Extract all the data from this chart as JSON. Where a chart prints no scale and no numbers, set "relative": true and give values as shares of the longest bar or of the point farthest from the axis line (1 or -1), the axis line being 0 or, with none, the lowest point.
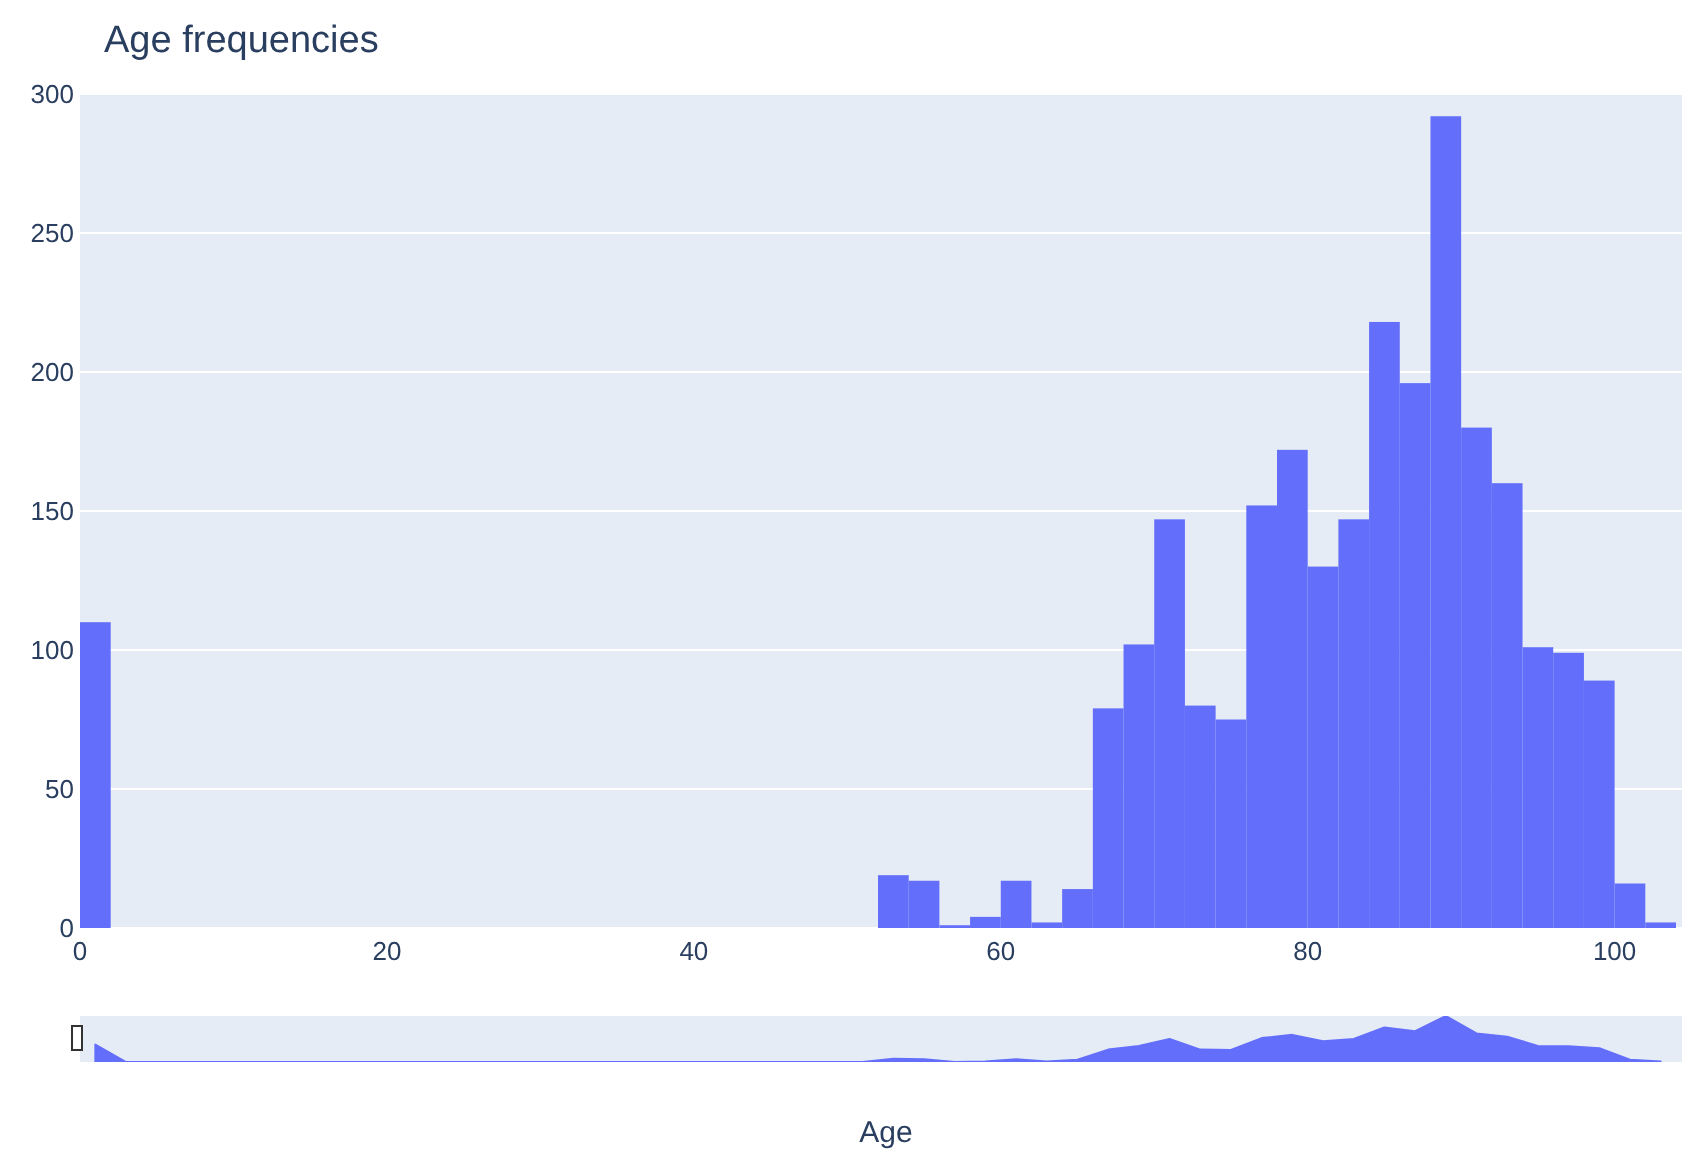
{
  "chart_data": [
    {
      "type": "histogram",
      "title": "Age frequencies",
      "xlabel": "Age",
      "color": "#636efa",
      "bins": [
        0,
        2,
        4,
        6,
        8,
        10,
        12,
        14,
        16,
        18,
        20,
        22,
        24,
        26,
        28,
        30,
        32,
        34,
        36,
        38,
        40,
        42,
        44,
        46,
        48,
        50,
        52,
        54,
        56,
        58,
        60,
        62,
        64,
        66,
        68,
        70,
        72,
        74,
        76,
        78,
        80,
        82,
        84,
        86,
        88,
        90,
        92,
        94,
        96,
        98,
        100,
        102,
        104
      ],
      "values": [
        110,
        0,
        0,
        0,
        0,
        0,
        0,
        0,
        0,
        0,
        0,
        0,
        0,
        0,
        0,
        0,
        0,
        0,
        0,
        0,
        0,
        0,
        0,
        0,
        0,
        0,
        19,
        17,
        1,
        4,
        17,
        2,
        14,
        79,
        102,
        147,
        80,
        75,
        152,
        172,
        130,
        147,
        218,
        196,
        292,
        180,
        160,
        101,
        99,
        89,
        16,
        2
      ],
      "xlim": [
        0,
        104
      ],
      "xticks": [
        0,
        20,
        40,
        60,
        80,
        100
      ],
      "ylim": [
        0,
        300
      ],
      "yticks": [
        0,
        50,
        100,
        150,
        200,
        250,
        300
      ],
      "grid": "y"
    },
    {
      "type": "area",
      "color": "#636efa",
      "relative": true,
      "categories": [
        null,
        null,
        null,
        null,
        null,
        null,
        null,
        null,
        null,
        null,
        null,
        null,
        null,
        null,
        null,
        null,
        null,
        null,
        null,
        null,
        null,
        null,
        null,
        null,
        null,
        null,
        null,
        null,
        null,
        null,
        null,
        null,
        null,
        null,
        null,
        null,
        null,
        null,
        null,
        null,
        null,
        null,
        null,
        null,
        null,
        null,
        null,
        null,
        null,
        null,
        null,
        null
      ],
      "values": [
        0.38,
        0,
        0,
        0,
        0,
        0,
        0,
        0,
        0,
        0,
        0,
        0,
        0,
        0,
        0,
        0,
        0,
        0,
        0,
        0,
        0,
        0,
        0,
        0,
        0,
        0,
        0.07,
        0.06,
        0,
        0.01,
        0.06,
        0.01,
        0.05,
        0.27,
        0.35,
        0.5,
        0.27,
        0.26,
        0.52,
        0.59,
        0.45,
        0.5,
        0.75,
        0.67,
        1,
        0.62,
        0.55,
        0.35,
        0.34,
        0.3,
        0.05,
        0.01
      ]
    }
  ]
}
